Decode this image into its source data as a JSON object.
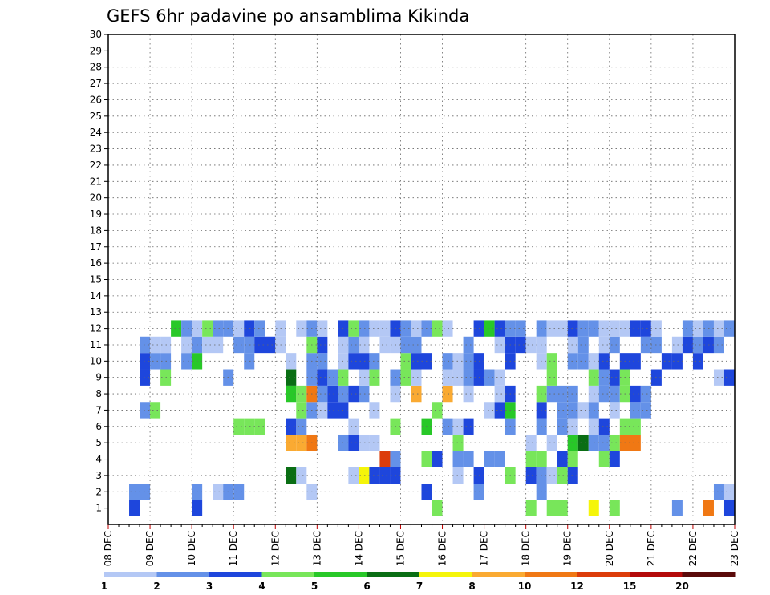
{
  "chart_data": {
    "type": "heatmap",
    "title": "GEFS 6hr padavine po ansamblima Kikinda",
    "x_ticks": [
      "08 DEC",
      "09 DEC",
      "10 DEC",
      "11 DEC",
      "12 DEC",
      "13 DEC",
      "14 DEC",
      "15 DEC",
      "16 DEC",
      "17 DEC",
      "18 DEC",
      "19 DEC",
      "20 DEC",
      "21 DEC",
      "22 DEC",
      "23 DEC"
    ],
    "y_ticks": [
      1,
      2,
      3,
      4,
      5,
      6,
      7,
      8,
      9,
      10,
      11,
      12,
      13,
      14,
      15,
      16,
      17,
      18,
      19,
      20,
      21,
      22,
      23,
      24,
      25,
      26,
      27,
      28,
      29,
      30
    ],
    "x_unit": "6-hour step from 08 DEC 00z",
    "xlim": [
      0,
      60
    ],
    "ylim": [
      0,
      30
    ],
    "grid": true,
    "colorbar": {
      "labels": [
        "1",
        "2",
        "3",
        "4",
        "5",
        "6",
        "7",
        "8",
        "10",
        "12",
        "15",
        "20"
      ],
      "colors": [
        "#b4c8f5",
        "#6491e8",
        "#1e46dc",
        "#78e65a",
        "#28c828",
        "#0a6e14",
        "#f5f50a",
        "#faaa32",
        "#f07814",
        "#dc3c0a",
        "#b40a0a",
        "#5a0a0a"
      ]
    },
    "cells": [
      [
        2,
        1,
        3
      ],
      [
        8,
        1,
        3
      ],
      [
        31,
        1,
        4
      ],
      [
        40,
        1,
        4
      ],
      [
        42,
        1,
        4
      ],
      [
        43,
        1,
        4
      ],
      [
        46,
        1,
        7
      ],
      [
        48,
        1,
        4
      ],
      [
        54,
        1,
        2
      ],
      [
        57,
        1,
        9
      ],
      [
        59,
        1,
        3
      ],
      [
        3,
        2,
        2
      ],
      [
        2,
        2,
        2
      ],
      [
        8,
        2,
        2
      ],
      [
        10,
        2,
        1
      ],
      [
        11,
        2,
        2
      ],
      [
        12,
        2,
        2
      ],
      [
        19,
        2,
        1
      ],
      [
        30,
        2,
        3
      ],
      [
        35,
        2,
        2
      ],
      [
        41,
        2,
        2
      ],
      [
        58,
        2,
        2
      ],
      [
        59,
        2,
        1
      ],
      [
        17,
        3,
        6
      ],
      [
        18,
        3,
        1
      ],
      [
        23,
        3,
        1
      ],
      [
        24,
        3,
        7
      ],
      [
        25,
        3,
        3
      ],
      [
        26,
        3,
        3
      ],
      [
        27,
        3,
        3
      ],
      [
        33,
        3,
        1
      ],
      [
        35,
        3,
        3
      ],
      [
        38,
        3,
        4
      ],
      [
        40,
        3,
        3
      ],
      [
        41,
        3,
        2
      ],
      [
        42,
        3,
        1
      ],
      [
        43,
        3,
        4
      ],
      [
        44,
        3,
        3
      ],
      [
        26,
        4,
        10
      ],
      [
        27,
        4,
        2
      ],
      [
        30,
        4,
        4
      ],
      [
        31,
        4,
        3
      ],
      [
        33,
        4,
        2
      ],
      [
        34,
        4,
        2
      ],
      [
        36,
        4,
        2
      ],
      [
        37,
        4,
        2
      ],
      [
        40,
        4,
        4
      ],
      [
        41,
        4,
        4
      ],
      [
        43,
        4,
        3
      ],
      [
        44,
        4,
        4
      ],
      [
        47,
        4,
        4
      ],
      [
        48,
        4,
        3
      ],
      [
        17,
        5,
        8
      ],
      [
        18,
        5,
        8
      ],
      [
        19,
        5,
        9
      ],
      [
        22,
        5,
        2
      ],
      [
        23,
        5,
        3
      ],
      [
        24,
        5,
        1
      ],
      [
        25,
        5,
        1
      ],
      [
        33,
        5,
        4
      ],
      [
        40,
        5,
        1
      ],
      [
        42,
        5,
        1
      ],
      [
        44,
        5,
        5
      ],
      [
        45,
        5,
        6
      ],
      [
        46,
        5,
        2
      ],
      [
        47,
        5,
        2
      ],
      [
        48,
        5,
        4
      ],
      [
        49,
        5,
        9
      ],
      [
        50,
        5,
        9
      ],
      [
        12,
        6,
        4
      ],
      [
        13,
        6,
        4
      ],
      [
        14,
        6,
        4
      ],
      [
        17,
        6,
        3
      ],
      [
        18,
        6,
        2
      ],
      [
        23,
        6,
        1
      ],
      [
        27,
        6,
        4
      ],
      [
        30,
        6,
        5
      ],
      [
        32,
        6,
        2
      ],
      [
        33,
        6,
        1
      ],
      [
        34,
        6,
        3
      ],
      [
        38,
        6,
        2
      ],
      [
        41,
        6,
        2
      ],
      [
        43,
        6,
        2
      ],
      [
        44,
        6,
        1
      ],
      [
        46,
        6,
        1
      ],
      [
        47,
        6,
        3
      ],
      [
        49,
        6,
        4
      ],
      [
        50,
        6,
        4
      ],
      [
        3,
        7,
        2
      ],
      [
        4,
        7,
        4
      ],
      [
        18,
        7,
        4
      ],
      [
        19,
        7,
        2
      ],
      [
        20,
        7,
        1
      ],
      [
        21,
        7,
        3
      ],
      [
        22,
        7,
        3
      ],
      [
        25,
        7,
        1
      ],
      [
        31,
        7,
        4
      ],
      [
        36,
        7,
        1
      ],
      [
        37,
        7,
        3
      ],
      [
        38,
        7,
        5
      ],
      [
        41,
        7,
        3
      ],
      [
        43,
        7,
        2
      ],
      [
        44,
        7,
        2
      ],
      [
        45,
        7,
        1
      ],
      [
        46,
        7,
        2
      ],
      [
        48,
        7,
        1
      ],
      [
        50,
        7,
        2
      ],
      [
        51,
        7,
        2
      ],
      [
        17,
        8,
        5
      ],
      [
        18,
        8,
        4
      ],
      [
        19,
        8,
        9
      ],
      [
        20,
        8,
        2
      ],
      [
        21,
        8,
        3
      ],
      [
        22,
        8,
        2
      ],
      [
        23,
        8,
        3
      ],
      [
        24,
        8,
        2
      ],
      [
        27,
        8,
        1
      ],
      [
        29,
        8,
        8
      ],
      [
        32,
        8,
        8
      ],
      [
        34,
        8,
        1
      ],
      [
        37,
        8,
        1
      ],
      [
        38,
        8,
        3
      ],
      [
        41,
        8,
        4
      ],
      [
        42,
        8,
        2
      ],
      [
        43,
        8,
        2
      ],
      [
        44,
        8,
        2
      ],
      [
        46,
        8,
        1
      ],
      [
        47,
        8,
        2
      ],
      [
        48,
        8,
        2
      ],
      [
        49,
        8,
        4
      ],
      [
        50,
        8,
        3
      ],
      [
        51,
        8,
        2
      ],
      [
        3,
        9,
        3
      ],
      [
        5,
        9,
        4
      ],
      [
        11,
        9,
        2
      ],
      [
        17,
        9,
        6
      ],
      [
        19,
        9,
        2
      ],
      [
        20,
        9,
        3
      ],
      [
        21,
        9,
        2
      ],
      [
        22,
        9,
        4
      ],
      [
        24,
        9,
        1
      ],
      [
        25,
        9,
        4
      ],
      [
        27,
        9,
        2
      ],
      [
        28,
        9,
        4
      ],
      [
        29,
        9,
        1
      ],
      [
        32,
        9,
        1
      ],
      [
        33,
        9,
        1
      ],
      [
        34,
        9,
        2
      ],
      [
        35,
        9,
        3
      ],
      [
        36,
        9,
        2
      ],
      [
        37,
        9,
        1
      ],
      [
        42,
        9,
        4
      ],
      [
        46,
        9,
        4
      ],
      [
        47,
        9,
        2
      ],
      [
        48,
        9,
        3
      ],
      [
        49,
        9,
        4
      ],
      [
        52,
        9,
        3
      ],
      [
        58,
        9,
        1
      ],
      [
        59,
        9,
        3
      ],
      [
        3,
        10,
        3
      ],
      [
        4,
        10,
        2
      ],
      [
        5,
        10,
        2
      ],
      [
        7,
        10,
        2
      ],
      [
        8,
        10,
        5
      ],
      [
        13,
        10,
        2
      ],
      [
        17,
        10,
        1
      ],
      [
        19,
        10,
        2
      ],
      [
        20,
        10,
        2
      ],
      [
        22,
        10,
        1
      ],
      [
        23,
        10,
        3
      ],
      [
        24,
        10,
        3
      ],
      [
        25,
        10,
        2
      ],
      [
        28,
        10,
        4
      ],
      [
        29,
        10,
        3
      ],
      [
        30,
        10,
        3
      ],
      [
        32,
        10,
        2
      ],
      [
        33,
        10,
        1
      ],
      [
        34,
        10,
        2
      ],
      [
        35,
        10,
        3
      ],
      [
        38,
        10,
        3
      ],
      [
        41,
        10,
        1
      ],
      [
        42,
        10,
        4
      ],
      [
        44,
        10,
        2
      ],
      [
        45,
        10,
        2
      ],
      [
        46,
        10,
        1
      ],
      [
        47,
        10,
        3
      ],
      [
        49,
        10,
        3
      ],
      [
        50,
        10,
        3
      ],
      [
        53,
        10,
        3
      ],
      [
        54,
        10,
        3
      ],
      [
        56,
        10,
        3
      ],
      [
        3,
        11,
        2
      ],
      [
        4,
        11,
        1
      ],
      [
        5,
        11,
        1
      ],
      [
        7,
        11,
        1
      ],
      [
        8,
        11,
        2
      ],
      [
        9,
        11,
        1
      ],
      [
        10,
        11,
        1
      ],
      [
        12,
        11,
        2
      ],
      [
        13,
        11,
        2
      ],
      [
        14,
        11,
        3
      ],
      [
        15,
        11,
        3
      ],
      [
        16,
        11,
        1
      ],
      [
        19,
        11,
        4
      ],
      [
        20,
        11,
        3
      ],
      [
        22,
        11,
        1
      ],
      [
        23,
        11,
        2
      ],
      [
        24,
        11,
        1
      ],
      [
        26,
        11,
        1
      ],
      [
        27,
        11,
        1
      ],
      [
        28,
        11,
        2
      ],
      [
        29,
        11,
        2
      ],
      [
        34,
        11,
        2
      ],
      [
        37,
        11,
        1
      ],
      [
        38,
        11,
        3
      ],
      [
        39,
        11,
        3
      ],
      [
        40,
        11,
        1
      ],
      [
        41,
        11,
        1
      ],
      [
        44,
        11,
        1
      ],
      [
        45,
        11,
        2
      ],
      [
        47,
        11,
        1
      ],
      [
        48,
        11,
        2
      ],
      [
        51,
        11,
        2
      ],
      [
        52,
        11,
        2
      ],
      [
        54,
        11,
        1
      ],
      [
        55,
        11,
        3
      ],
      [
        56,
        11,
        2
      ],
      [
        57,
        11,
        3
      ],
      [
        58,
        11,
        2
      ],
      [
        6,
        12,
        5
      ],
      [
        7,
        12,
        2
      ],
      [
        8,
        12,
        1
      ],
      [
        9,
        12,
        4
      ],
      [
        10,
        12,
        2
      ],
      [
        11,
        12,
        2
      ],
      [
        12,
        12,
        1
      ],
      [
        13,
        12,
        3
      ],
      [
        14,
        12,
        2
      ],
      [
        16,
        12,
        1
      ],
      [
        18,
        12,
        1
      ],
      [
        19,
        12,
        2
      ],
      [
        20,
        12,
        1
      ],
      [
        22,
        12,
        3
      ],
      [
        23,
        12,
        4
      ],
      [
        24,
        12,
        2
      ],
      [
        25,
        12,
        1
      ],
      [
        26,
        12,
        1
      ],
      [
        27,
        12,
        3
      ],
      [
        28,
        12,
        2
      ],
      [
        29,
        12,
        1
      ],
      [
        30,
        12,
        2
      ],
      [
        31,
        12,
        4
      ],
      [
        32,
        12,
        1
      ],
      [
        35,
        12,
        3
      ],
      [
        36,
        12,
        5
      ],
      [
        37,
        12,
        3
      ],
      [
        38,
        12,
        2
      ],
      [
        39,
        12,
        2
      ],
      [
        41,
        12,
        2
      ],
      [
        42,
        12,
        1
      ],
      [
        43,
        12,
        1
      ],
      [
        44,
        12,
        3
      ],
      [
        45,
        12,
        2
      ],
      [
        46,
        12,
        2
      ],
      [
        47,
        12,
        1
      ],
      [
        48,
        12,
        1
      ],
      [
        49,
        12,
        1
      ],
      [
        50,
        12,
        3
      ],
      [
        51,
        12,
        3
      ],
      [
        52,
        12,
        1
      ],
      [
        55,
        12,
        2
      ],
      [
        56,
        12,
        1
      ],
      [
        57,
        12,
        2
      ],
      [
        58,
        12,
        1
      ],
      [
        59,
        12,
        2
      ]
    ]
  }
}
